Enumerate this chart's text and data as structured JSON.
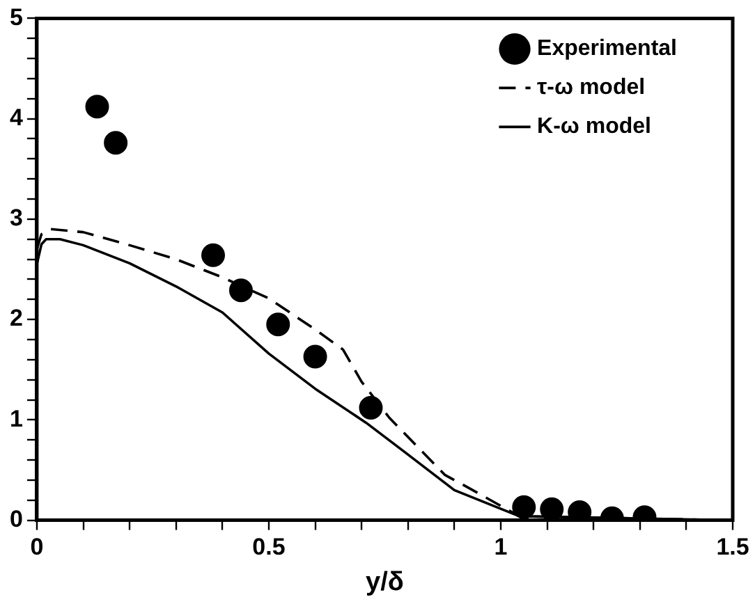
{
  "chart_data": {
    "type": "line",
    "xlabel": "y/δ",
    "xlim": [
      0,
      1.5
    ],
    "ylim": [
      0,
      5
    ],
    "xticks": [
      0,
      {
        "value": 0.1,
        "label": null
      },
      {
        "value": 0.2,
        "label": null
      },
      {
        "value": 0.3,
        "label": null
      },
      {
        "value": 0.4,
        "label": null
      },
      0.5,
      {
        "value": 0.6,
        "label": null
      },
      {
        "value": 0.7,
        "label": null
      },
      {
        "value": 0.8,
        "label": null
      },
      {
        "value": 0.9,
        "label": null
      },
      1,
      {
        "value": 1.1,
        "label": null
      },
      {
        "value": 1.2,
        "label": null
      },
      {
        "value": 1.3,
        "label": null
      },
      {
        "value": 1.4,
        "label": null
      },
      1.5
    ],
    "yticks": [
      0,
      {
        "value": 0.2,
        "label": null
      },
      {
        "value": 0.4,
        "label": null
      },
      {
        "value": 0.6,
        "label": null
      },
      {
        "value": 0.8,
        "label": null
      },
      1,
      {
        "value": 1.2,
        "label": null
      },
      {
        "value": 1.4,
        "label": null
      },
      {
        "value": 1.6,
        "label": null
      },
      {
        "value": 1.8,
        "label": null
      },
      2,
      {
        "value": 2.2,
        "label": null
      },
      {
        "value": 2.4,
        "label": null
      },
      {
        "value": 2.6,
        "label": null
      },
      {
        "value": 2.8,
        "label": null
      },
      3,
      {
        "value": 3.2,
        "label": null
      },
      {
        "value": 3.4,
        "label": null
      },
      {
        "value": 3.6,
        "label": null
      },
      {
        "value": 3.8,
        "label": null
      },
      4,
      {
        "value": 4.2,
        "label": null
      },
      {
        "value": 4.4,
        "label": null
      },
      {
        "value": 4.6,
        "label": null
      },
      {
        "value": 4.8,
        "label": null
      },
      5
    ],
    "grid": false,
    "legend": "top right",
    "series": [
      {
        "name": "Experimental",
        "type": "scatter",
        "marker": "circle",
        "color": "#000000",
        "x": [
          0.13,
          0.17,
          0.38,
          0.44,
          0.52,
          0.6,
          0.72,
          1.05,
          1.11,
          1.17,
          1.24,
          1.31
        ],
        "values": [
          4.12,
          3.76,
          2.64,
          2.29,
          1.95,
          1.63,
          1.12,
          0.13,
          0.11,
          0.08,
          0.02,
          0.03
        ]
      },
      {
        "name": "τ-ω model",
        "line_style": "dashed",
        "marker": "none",
        "color": "#000000",
        "x": [
          0,
          0.01,
          0.03,
          0.1,
          0.2,
          0.3,
          0.4,
          0.5,
          0.6,
          0.66,
          0.7,
          0.76,
          0.88,
          0.92,
          1.04,
          1.5
        ],
        "values": [
          2.7,
          2.85,
          2.9,
          2.87,
          2.74,
          2.6,
          2.42,
          2.21,
          1.9,
          1.7,
          1.38,
          1.02,
          0.45,
          0.35,
          0.04,
          0
        ]
      },
      {
        "name": "K-ω model",
        "line_style": "solid",
        "marker": "none",
        "color": "#000000",
        "x": [
          0,
          0.01,
          0.02,
          0.05,
          0.1,
          0.2,
          0.3,
          0.4,
          0.5,
          0.6,
          0.71,
          0.79,
          0.9,
          1.04,
          1.5
        ],
        "values": [
          2.55,
          2.75,
          2.8,
          2.8,
          2.74,
          2.56,
          2.33,
          2.07,
          1.66,
          1.31,
          0.97,
          0.69,
          0.3,
          0.04,
          0
        ]
      }
    ]
  }
}
